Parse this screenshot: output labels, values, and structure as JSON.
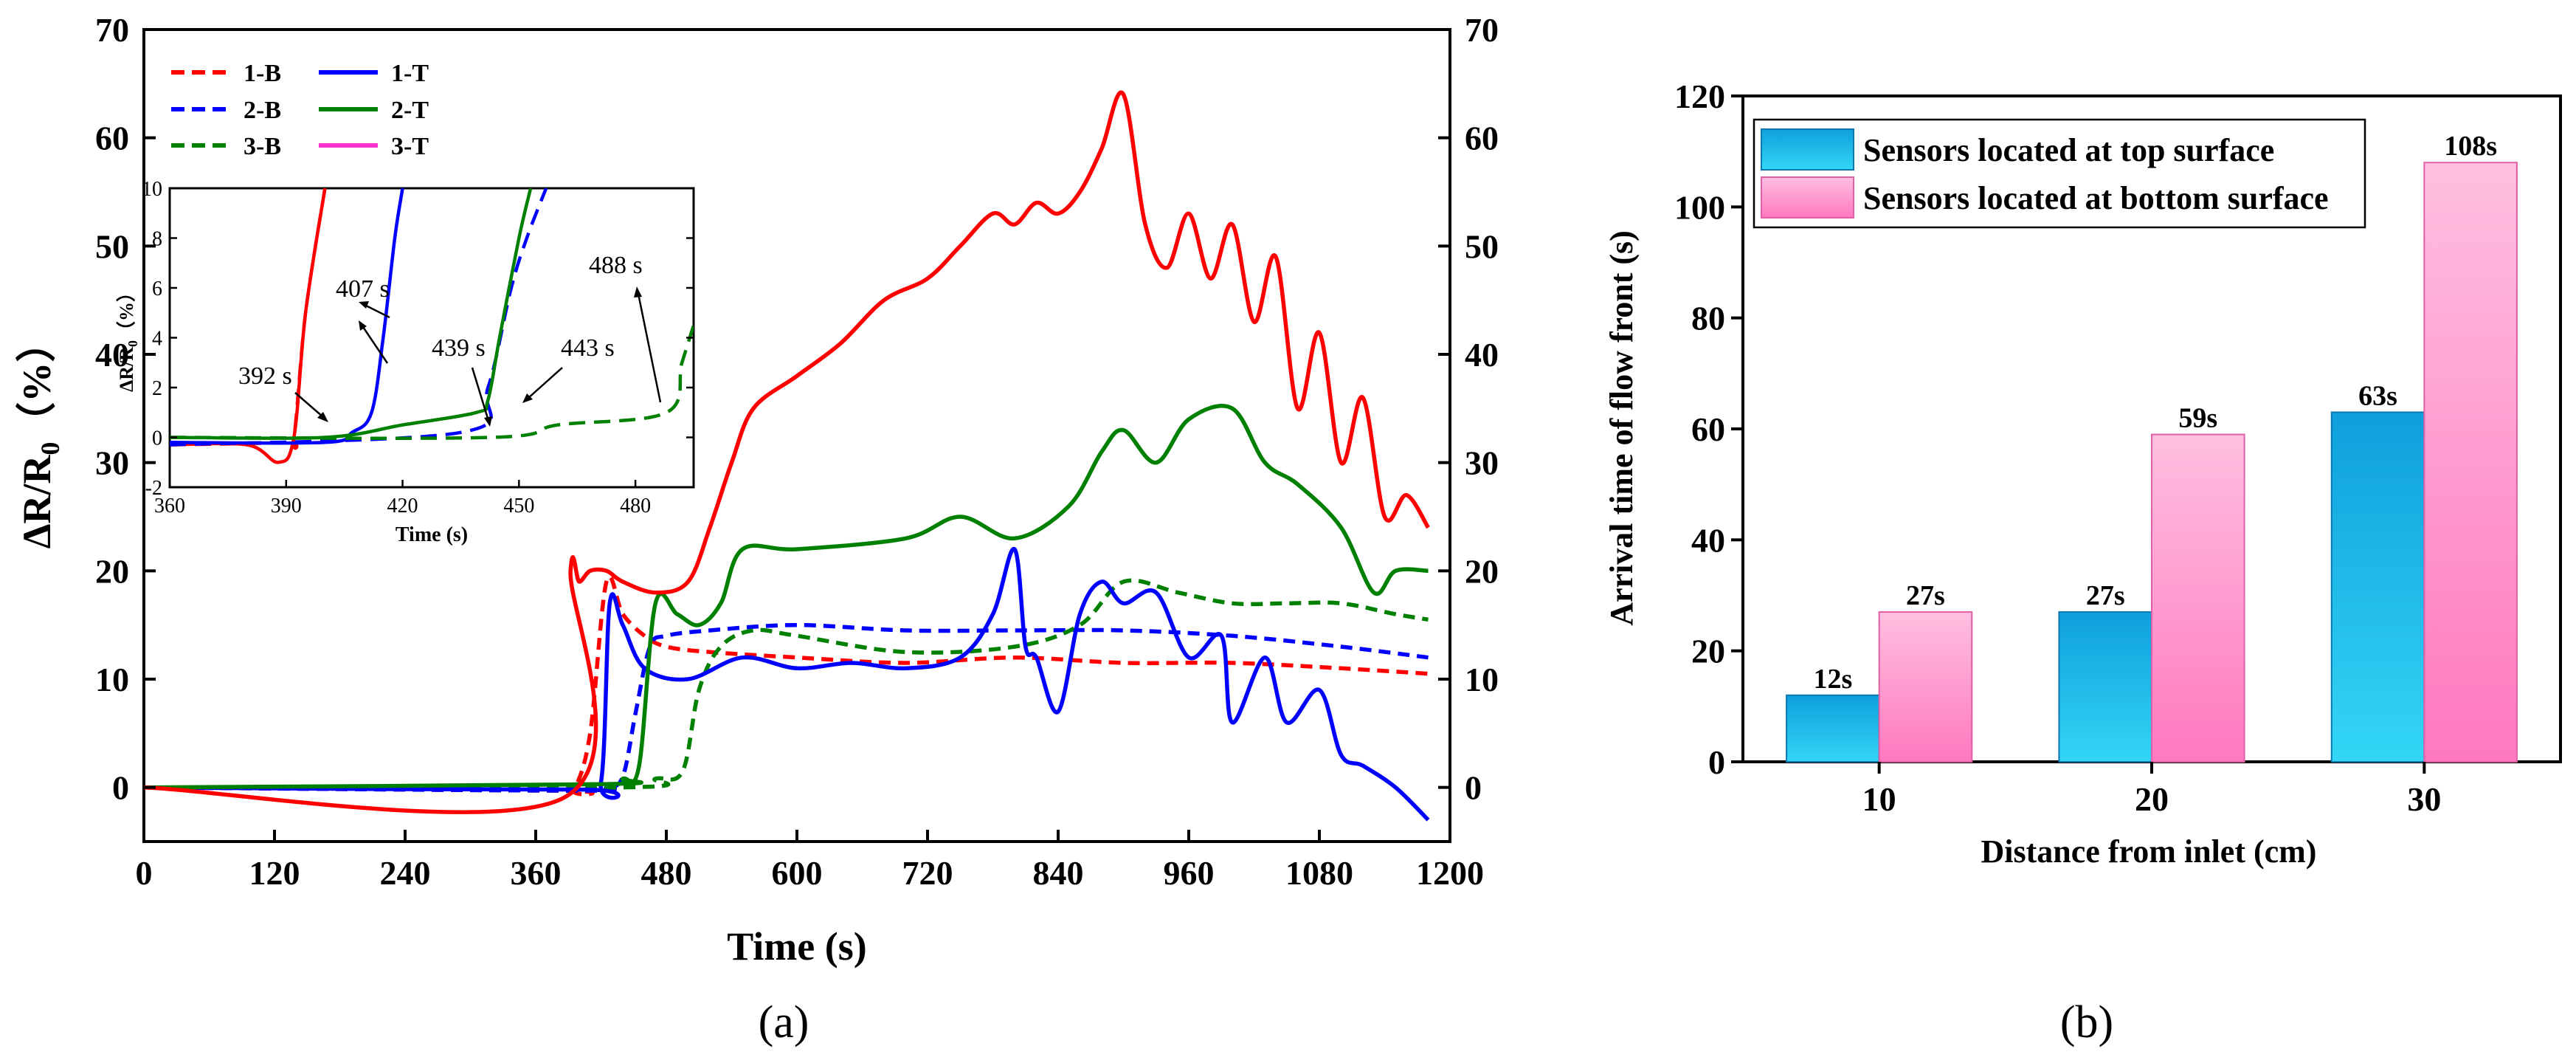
{
  "chart_data": [
    {
      "type": "line",
      "panel_label": "(a)",
      "xlabel": "Time (s)",
      "ylabel": "ΔR/R",
      "ylabel_sub": "0",
      "ylabel_suffix": "（%）",
      "xlim": [
        0,
        1200
      ],
      "ylim": [
        -5,
        70
      ],
      "xticks": [
        "0",
        "120",
        "240",
        "360",
        "480",
        "600",
        "720",
        "840",
        "960",
        "1080",
        "1200"
      ],
      "yticks": [
        "0",
        "10",
        "20",
        "30",
        "40",
        "50",
        "60",
        "70"
      ],
      "legend_position": "top-left",
      "series": [
        {
          "name": "1-B",
          "color": "#ff0000",
          "style": "dashed",
          "x": [
            0,
            380,
            395,
            410,
            425,
            440,
            460,
            480,
            520,
            600,
            700,
            800,
            900,
            1000,
            1100,
            1180
          ],
          "y": [
            0,
            -0.3,
            -0.2,
            5,
            19,
            16,
            14,
            13,
            12.5,
            12,
            11.5,
            12,
            11.5,
            11.5,
            11,
            10.5
          ]
        },
        {
          "name": "2-B",
          "color": "#0000ff",
          "style": "dashed",
          "x": [
            0,
            400,
            425,
            440,
            452,
            465,
            480,
            520,
            600,
            700,
            800,
            900,
            1000,
            1100,
            1180
          ],
          "y": [
            0,
            -0.3,
            0,
            1,
            7,
            13,
            14,
            14.5,
            15,
            14.5,
            14.5,
            14.5,
            14,
            13,
            12
          ]
        },
        {
          "name": "3-B",
          "color": "#008000",
          "style": "dashed",
          "x": [
            0,
            440,
            470,
            495,
            510,
            530,
            560,
            600,
            700,
            800,
            860,
            900,
            950,
            1000,
            1050,
            1100,
            1150,
            1180
          ],
          "y": [
            0,
            0,
            0.8,
            1.5,
            9,
            13,
            14.5,
            14,
            12.5,
            13,
            15,
            19,
            18,
            17,
            17,
            17,
            16,
            15.5
          ]
        },
        {
          "name": "1-T",
          "color": "#0000ff",
          "style": "solid",
          "x": [
            0,
            400,
            420,
            428,
            440,
            460,
            500,
            550,
            600,
            650,
            700,
            750,
            780,
            800,
            810,
            820,
            840,
            860,
            880,
            900,
            930,
            960,
            990,
            1000,
            1030,
            1050,
            1080,
            1100,
            1120,
            1150,
            1180
          ],
          "y": [
            0,
            -0.2,
            0.5,
            17,
            15,
            11,
            10,
            12,
            11,
            11.5,
            11,
            12,
            16,
            22,
            13,
            12,
            7,
            16,
            19,
            17,
            18,
            12,
            14,
            6,
            12,
            6,
            9,
            3,
            2,
            0,
            -3
          ]
        },
        {
          "name": "2-T",
          "color": "#008000",
          "style": "solid",
          "x": [
            0,
            420,
            440,
            455,
            470,
            490,
            510,
            530,
            550,
            600,
            700,
            750,
            800,
            850,
            880,
            900,
            930,
            960,
            1000,
            1030,
            1060,
            1100,
            1130,
            1150,
            1180
          ],
          "y": [
            0,
            0.3,
            0.8,
            2,
            17,
            16,
            15,
            17,
            22,
            22,
            23,
            25,
            23,
            26,
            31,
            33,
            30,
            34,
            35,
            30,
            28,
            24,
            18,
            20,
            20
          ]
        },
        {
          "name": "3-T",
          "color": "#ff0000",
          "style": "solid",
          "x": [
            0,
            385,
            392,
            400,
            410,
            425,
            440,
            470,
            500,
            520,
            540,
            560,
            600,
            640,
            680,
            720,
            750,
            780,
            800,
            820,
            840,
            860,
            880,
            900,
            920,
            940,
            960,
            980,
            1000,
            1020,
            1040,
            1060,
            1080,
            1100,
            1120,
            1140,
            1160,
            1180
          ],
          "y": [
            0,
            -1,
            20,
            19,
            20,
            20,
            19,
            18,
            19,
            24,
            30,
            35,
            38,
            41,
            45,
            47,
            50,
            53,
            52,
            54,
            53,
            55,
            59,
            64,
            52,
            48,
            53,
            47,
            52,
            43,
            49,
            35,
            42,
            30,
            36,
            25,
            27,
            24
          ]
        }
      ],
      "inset": {
        "xlabel": "Time (s)",
        "ylabel": "ΔR/R",
        "ylabel_sub": "0",
        "ylabel_suffix": "（%）",
        "xlim": [
          360,
          495
        ],
        "ylim": [
          -2,
          10
        ],
        "xticks": [
          "360",
          "390",
          "420",
          "450",
          "480"
        ],
        "yticks": [
          "-2",
          "0",
          "2",
          "4",
          "6",
          "8",
          "10"
        ],
        "series": [
          {
            "name": "3-T",
            "color": "#ff0000",
            "style": "solid",
            "x": [
              360,
              380,
              388,
              392,
              395,
              400
            ],
            "y": [
              -0.3,
              -0.3,
              -1,
              0,
              5,
              10
            ]
          },
          {
            "name": "1-B",
            "color": "#ff0000",
            "style": "dashed",
            "x": [
              360,
              390,
              392,
              395,
              400
            ],
            "y": [
              -0.3,
              -0.2,
              0,
              5,
              10
            ]
          },
          {
            "name": "1-T",
            "color": "#0000ff",
            "style": "solid",
            "x": [
              360,
              400,
              407,
              412,
              415,
              418,
              420
            ],
            "y": [
              -0.2,
              -0.2,
              0.2,
              1,
              4,
              8,
              10
            ]
          },
          {
            "name": "2-B",
            "color": "#0000ff",
            "style": "dashed",
            "x": [
              360,
              435,
              442,
              448,
              452,
              457
            ],
            "y": [
              -0.3,
              0.2,
              2,
              6,
              8,
              10
            ]
          },
          {
            "name": "2-T",
            "color": "#008000",
            "style": "solid",
            "x": [
              360,
              400,
              420,
              439,
              442,
              445,
              450,
              453
            ],
            "y": [
              0,
              0,
              0.5,
              1,
              1.5,
              4,
              8,
              10
            ]
          },
          {
            "name": "3-B",
            "color": "#008000",
            "style": "dashed",
            "x": [
              360,
              443,
              460,
              488,
              492,
              496
            ],
            "y": [
              0,
              0,
              0.5,
              1,
              3,
              5
            ]
          }
        ],
        "annotations": [
          "392 s",
          "407 s",
          "439 s",
          "443 s",
          "488 s"
        ]
      }
    },
    {
      "type": "bar",
      "panel_label": "(b)",
      "xlabel": "Distance from inlet (cm)",
      "ylabel": "Arrival time of flow front (s)",
      "categories": [
        "10",
        "20",
        "30"
      ],
      "ylim": [
        0,
        120
      ],
      "yticks": [
        "0",
        "20",
        "40",
        "60",
        "80",
        "100",
        "120"
      ],
      "legend_position": "top-left",
      "series": [
        {
          "name": "Sensors located at top surface",
          "color": "#1aaee0",
          "values": [
            12,
            27,
            63
          ],
          "labels": [
            "12s",
            "27s",
            "63s"
          ]
        },
        {
          "name": "Sensors located at bottom surface",
          "color": "#ff9ccd",
          "values": [
            27,
            59,
            108
          ],
          "labels": [
            "27s",
            "59s",
            "108s"
          ]
        }
      ]
    }
  ]
}
